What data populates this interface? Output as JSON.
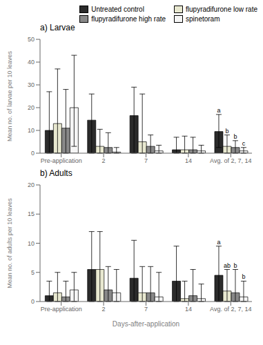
{
  "chart_data": [
    {
      "type": "bar",
      "title": "a) Larvae",
      "y_label": "Mean no. of larvae per 10 leaves",
      "categories": [
        "Pre-application",
        "2",
        "7",
        "14",
        "Avg. of 2, 7, 14"
      ],
      "series": [
        {
          "name": "Untreated control",
          "color": "#2b2b2b",
          "values": [
            10.0,
            14.5,
            16.5,
            1.5,
            9.5
          ],
          "ci_lower": [
            0.0,
            0.0,
            0.0,
            0.0,
            2.5
          ],
          "ci_upper": [
            27.0,
            26.0,
            29.0,
            7.0,
            17.0
          ]
        },
        {
          "name": "flupyradifurone low rate",
          "color": "#e8e8d0",
          "values": [
            13.0,
            3.0,
            5.0,
            1.5,
            3.0
          ],
          "ci_lower": [
            0.0,
            0.0,
            0.0,
            0.0,
            0.0
          ],
          "ci_upper": [
            37.0,
            10.5,
            26.0,
            7.5,
            8.0
          ]
        },
        {
          "name": "flupyradifurone high rate",
          "color": "#888888",
          "values": [
            11.0,
            2.5,
            3.0,
            1.5,
            2.5
          ],
          "ci_lower": [
            0.0,
            0.0,
            0.0,
            0.0,
            0.0
          ],
          "ci_upper": [
            28.0,
            9.0,
            8.0,
            7.0,
            5.5
          ]
        },
        {
          "name": "spinetoram",
          "color": "#f5f5f5",
          "values": [
            20.0,
            0.5,
            1.0,
            1.0,
            1.0
          ],
          "ci_lower": [
            3.0,
            0.0,
            0.0,
            0.0,
            0.0
          ],
          "ci_upper": [
            43.0,
            2.5,
            3.5,
            3.5,
            2.5
          ]
        }
      ],
      "annotations": [
        {
          "text": "a",
          "category": "Avg. of 2, 7, 14",
          "series": "Untreated control"
        },
        {
          "text": "b",
          "category": "Avg. of 2, 7, 14",
          "series": "flupyradifurone low rate"
        },
        {
          "text": "b",
          "category": "Avg. of 2, 7, 14",
          "series": "flupyradifurone high rate"
        },
        {
          "text": "c",
          "category": "Avg. of 2, 7, 14",
          "series": "spinetoram"
        }
      ],
      "ylim": [
        0,
        50
      ],
      "yticks": [
        0,
        10,
        20,
        30,
        40,
        50
      ],
      "grid": false,
      "legend": "upper right"
    },
    {
      "type": "bar",
      "title": "b) Adults",
      "x_label": "Days-after-application",
      "y_label": "Mean no. of adults per 10 leaves",
      "categories": [
        "Pre-application",
        "2",
        "7",
        "14",
        "Avg. of 2, 7, 14"
      ],
      "series": [
        {
          "name": "Untreated control",
          "color": "#2b2b2b",
          "values": [
            1.0,
            5.5,
            4.0,
            3.5,
            4.5
          ],
          "ci_lower": [
            0.0,
            0.0,
            0.0,
            0.0,
            0.0
          ],
          "ci_upper": [
            3.5,
            12.0,
            10.5,
            9.5,
            9.5
          ]
        },
        {
          "name": "flupyradifurone low rate",
          "color": "#e8e8d0",
          "values": [
            1.5,
            5.5,
            1.5,
            0.5,
            1.8
          ],
          "ci_lower": [
            0.0,
            0.0,
            0.0,
            0.0,
            0.0
          ],
          "ci_upper": [
            5.0,
            12.0,
            6.0,
            3.5,
            5.5
          ]
        },
        {
          "name": "flupyradifurone high rate",
          "color": "#888888",
          "values": [
            0.8,
            2.0,
            1.5,
            1.0,
            1.5
          ],
          "ci_lower": [
            0.0,
            0.0,
            0.0,
            0.0,
            0.0
          ],
          "ci_upper": [
            3.5,
            6.0,
            6.0,
            5.5,
            5.5
          ]
        },
        {
          "name": "spinetoram",
          "color": "#f5f5f5",
          "values": [
            2.0,
            1.5,
            0.8,
            0.5,
            0.8
          ],
          "ci_lower": [
            0.0,
            0.0,
            0.0,
            0.0,
            0.0
          ],
          "ci_upper": [
            5.0,
            5.5,
            5.0,
            3.0,
            3.5
          ]
        }
      ],
      "annotations": [
        {
          "text": "a",
          "category": "Avg. of 2, 7, 14",
          "series": "Untreated control"
        },
        {
          "text": "ab",
          "category": "Avg. of 2, 7, 14",
          "series": "flupyradifurone low rate"
        },
        {
          "text": "b",
          "category": "Avg. of 2, 7, 14",
          "series": "flupyradifurone high rate"
        },
        {
          "text": "b",
          "category": "Avg. of 2, 7, 14",
          "series": "spinetoram"
        }
      ],
      "ylim": [
        0,
        20
      ],
      "yticks": [
        0,
        5,
        10,
        15,
        20
      ],
      "grid": false
    }
  ]
}
